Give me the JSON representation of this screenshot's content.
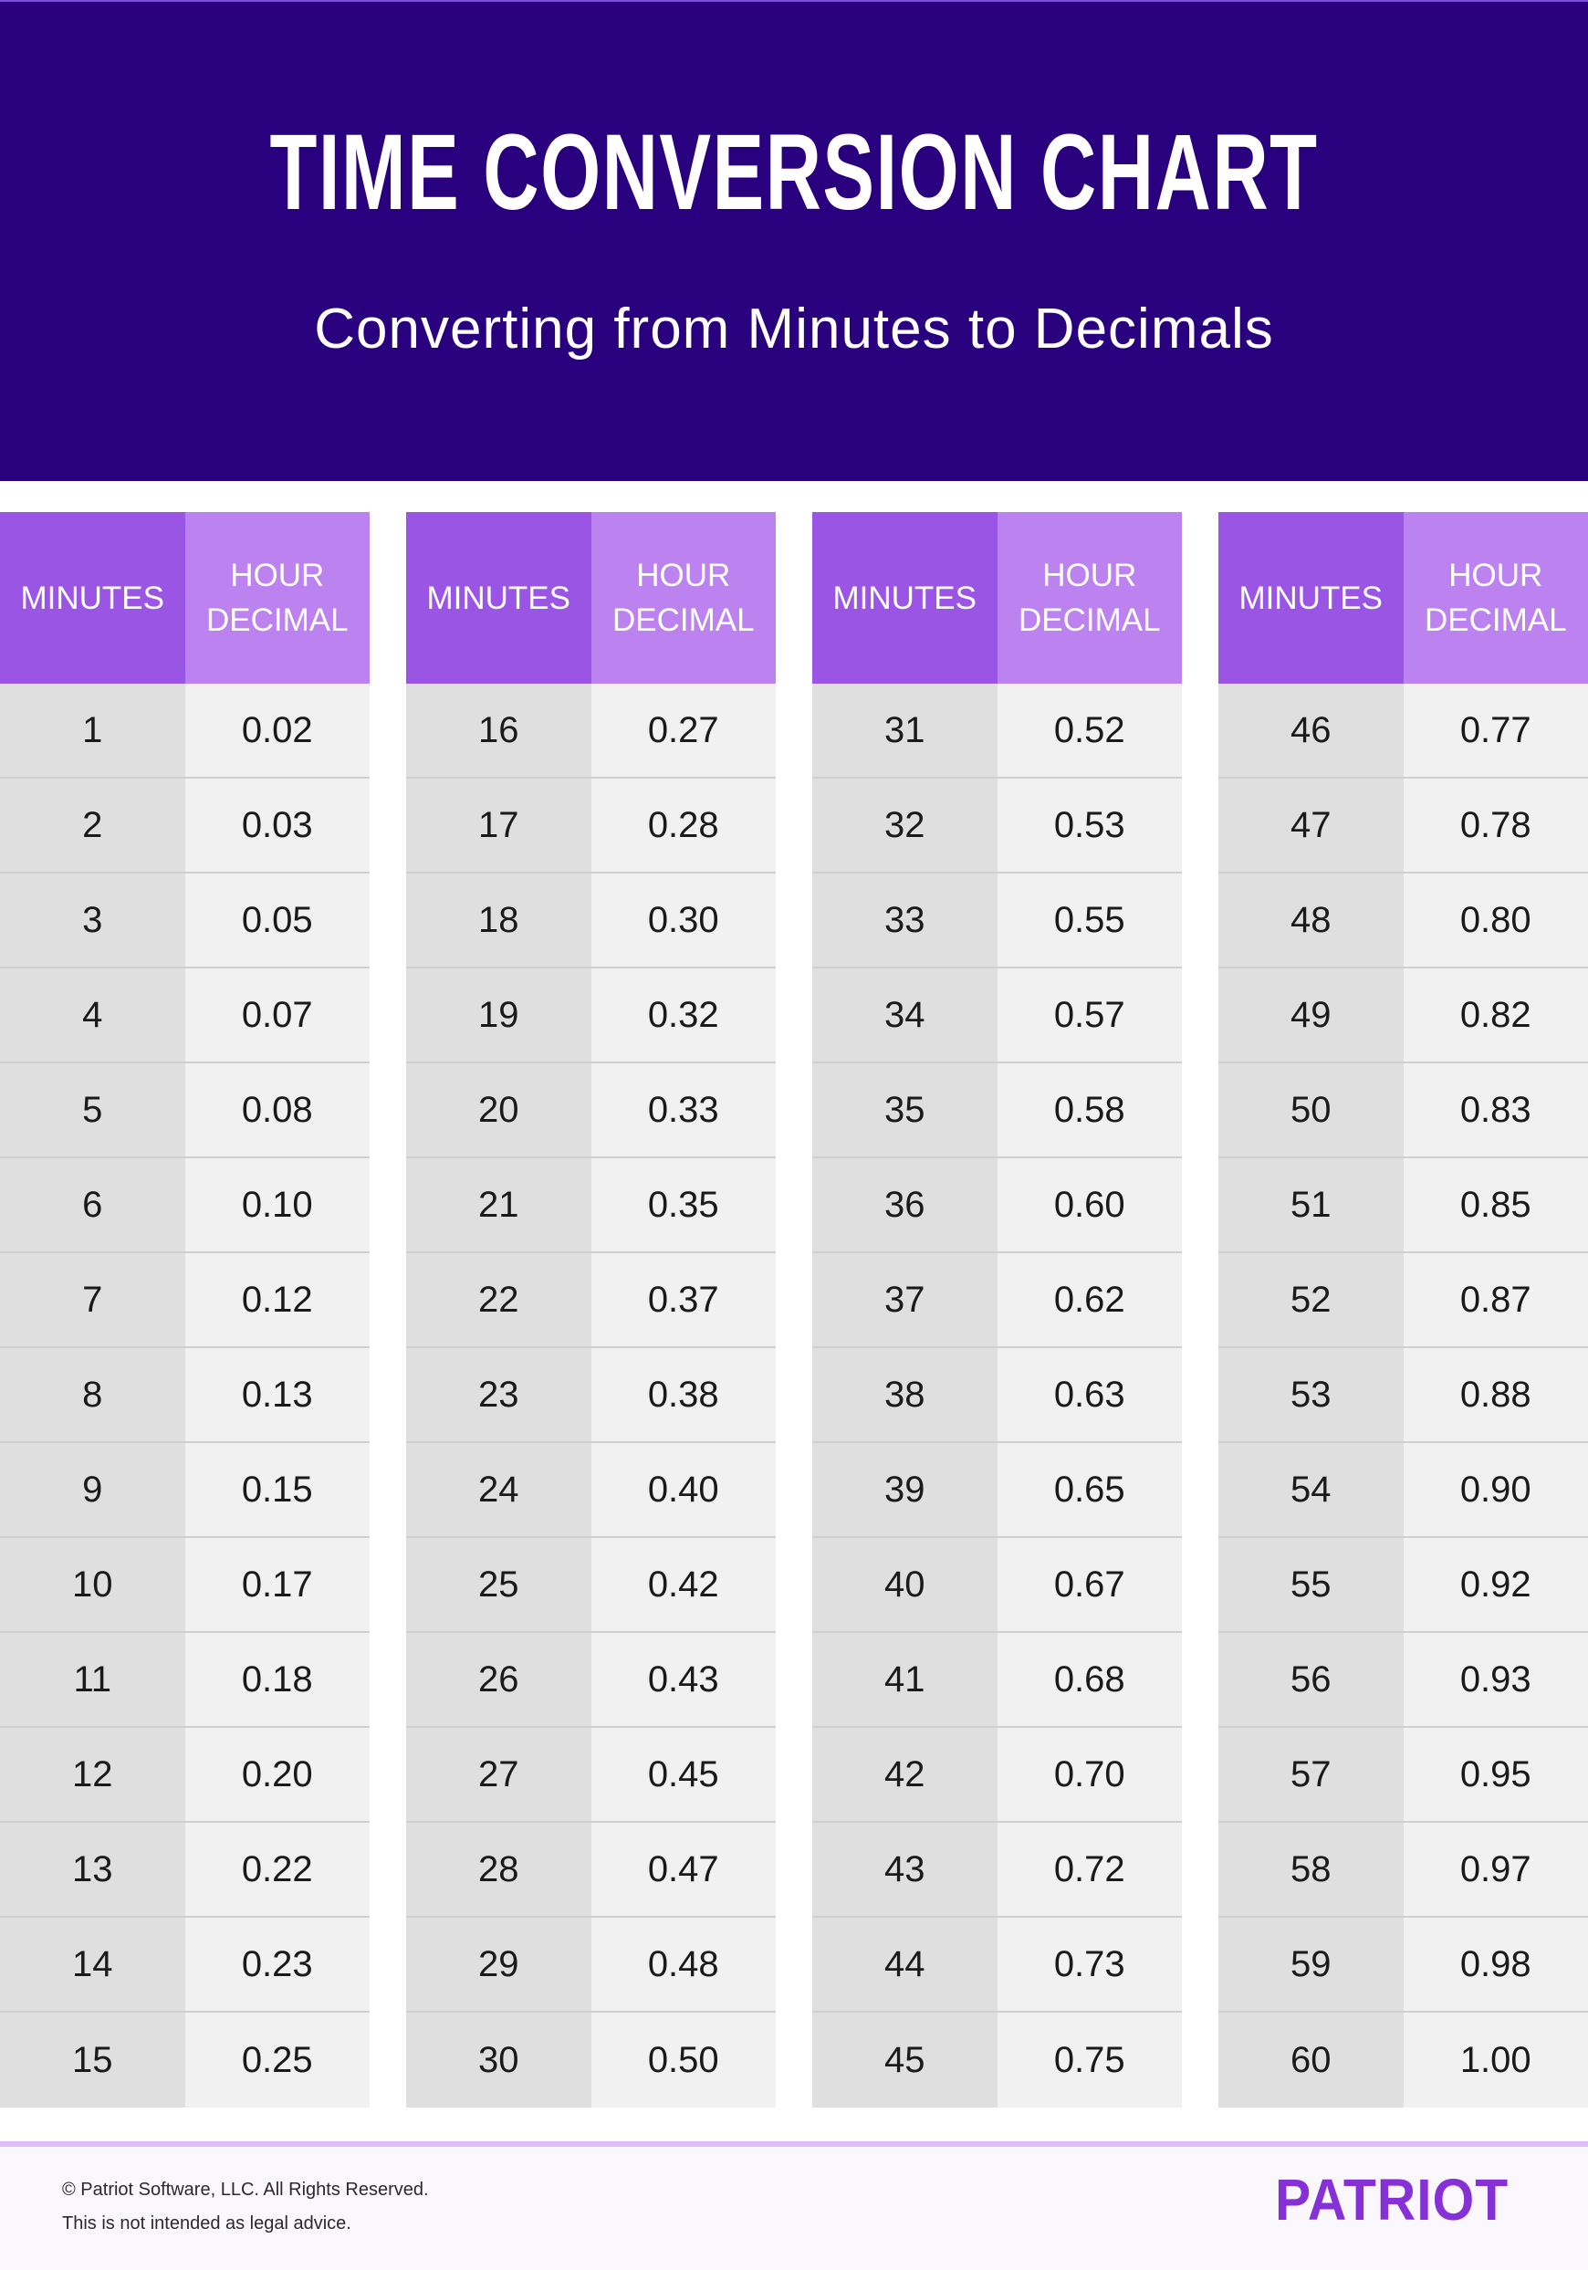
{
  "header": {
    "title": "TIME CONVERSION CHART",
    "subtitle": "Converting from Minutes to Decimals"
  },
  "columns": {
    "minutes_label": "MINUTES",
    "decimal_label_line1": "HOUR",
    "decimal_label_line2": "DECIMAL"
  },
  "colors": {
    "header_bg": "#29007d",
    "minutes_header": "#9b55e4",
    "decimal_header": "#bc82ef",
    "minutes_cell": "#dfdfdf",
    "decimal_cell": "#f1f1f1",
    "logo": "#8531d6",
    "footer_rule": "#dcbdf7"
  },
  "tables": [
    {
      "rows": [
        {
          "min": "1",
          "dec": "0.02"
        },
        {
          "min": "2",
          "dec": "0.03"
        },
        {
          "min": "3",
          "dec": "0.05"
        },
        {
          "min": "4",
          "dec": "0.07"
        },
        {
          "min": "5",
          "dec": "0.08"
        },
        {
          "min": "6",
          "dec": "0.10"
        },
        {
          "min": "7",
          "dec": "0.12"
        },
        {
          "min": "8",
          "dec": "0.13"
        },
        {
          "min": "9",
          "dec": "0.15"
        },
        {
          "min": "10",
          "dec": "0.17"
        },
        {
          "min": "11",
          "dec": "0.18"
        },
        {
          "min": "12",
          "dec": "0.20"
        },
        {
          "min": "13",
          "dec": "0.22"
        },
        {
          "min": "14",
          "dec": "0.23"
        },
        {
          "min": "15",
          "dec": "0.25"
        }
      ]
    },
    {
      "rows": [
        {
          "min": "16",
          "dec": "0.27"
        },
        {
          "min": "17",
          "dec": "0.28"
        },
        {
          "min": "18",
          "dec": "0.30"
        },
        {
          "min": "19",
          "dec": "0.32"
        },
        {
          "min": "20",
          "dec": "0.33"
        },
        {
          "min": "21",
          "dec": "0.35"
        },
        {
          "min": "22",
          "dec": "0.37"
        },
        {
          "min": "23",
          "dec": "0.38"
        },
        {
          "min": "24",
          "dec": "0.40"
        },
        {
          "min": "25",
          "dec": "0.42"
        },
        {
          "min": "26",
          "dec": "0.43"
        },
        {
          "min": "27",
          "dec": "0.45"
        },
        {
          "min": "28",
          "dec": "0.47"
        },
        {
          "min": "29",
          "dec": "0.48"
        },
        {
          "min": "30",
          "dec": "0.50"
        }
      ]
    },
    {
      "rows": [
        {
          "min": "31",
          "dec": "0.52"
        },
        {
          "min": "32",
          "dec": "0.53"
        },
        {
          "min": "33",
          "dec": "0.55"
        },
        {
          "min": "34",
          "dec": "0.57"
        },
        {
          "min": "35",
          "dec": "0.58"
        },
        {
          "min": "36",
          "dec": "0.60"
        },
        {
          "min": "37",
          "dec": "0.62"
        },
        {
          "min": "38",
          "dec": "0.63"
        },
        {
          "min": "39",
          "dec": "0.65"
        },
        {
          "min": "40",
          "dec": "0.67"
        },
        {
          "min": "41",
          "dec": "0.68"
        },
        {
          "min": "42",
          "dec": "0.70"
        },
        {
          "min": "43",
          "dec": "0.72"
        },
        {
          "min": "44",
          "dec": "0.73"
        },
        {
          "min": "45",
          "dec": "0.75"
        }
      ]
    },
    {
      "rows": [
        {
          "min": "46",
          "dec": "0.77"
        },
        {
          "min": "47",
          "dec": "0.78"
        },
        {
          "min": "48",
          "dec": "0.80"
        },
        {
          "min": "49",
          "dec": "0.82"
        },
        {
          "min": "50",
          "dec": "0.83"
        },
        {
          "min": "51",
          "dec": "0.85"
        },
        {
          "min": "52",
          "dec": "0.87"
        },
        {
          "min": "53",
          "dec": "0.88"
        },
        {
          "min": "54",
          "dec": "0.90"
        },
        {
          "min": "55",
          "dec": "0.92"
        },
        {
          "min": "56",
          "dec": "0.93"
        },
        {
          "min": "57",
          "dec": "0.95"
        },
        {
          "min": "58",
          "dec": "0.97"
        },
        {
          "min": "59",
          "dec": "0.98"
        },
        {
          "min": "60",
          "dec": "1.00"
        }
      ]
    }
  ],
  "footer": {
    "copyright": "© Patriot Software, LLC. All Rights Reserved.",
    "disclaimer": "This is not intended as legal advice.",
    "logo_text": "PATRIOT"
  },
  "chart_data": {
    "type": "table",
    "title": "TIME CONVERSION CHART",
    "subtitle": "Converting from Minutes to Decimals",
    "columns": [
      "MINUTES",
      "HOUR DECIMAL"
    ],
    "x": [
      1,
      2,
      3,
      4,
      5,
      6,
      7,
      8,
      9,
      10,
      11,
      12,
      13,
      14,
      15,
      16,
      17,
      18,
      19,
      20,
      21,
      22,
      23,
      24,
      25,
      26,
      27,
      28,
      29,
      30,
      31,
      32,
      33,
      34,
      35,
      36,
      37,
      38,
      39,
      40,
      41,
      42,
      43,
      44,
      45,
      46,
      47,
      48,
      49,
      50,
      51,
      52,
      53,
      54,
      55,
      56,
      57,
      58,
      59,
      60
    ],
    "values": [
      0.02,
      0.03,
      0.05,
      0.07,
      0.08,
      0.1,
      0.12,
      0.13,
      0.15,
      0.17,
      0.18,
      0.2,
      0.22,
      0.23,
      0.25,
      0.27,
      0.28,
      0.3,
      0.32,
      0.33,
      0.35,
      0.37,
      0.38,
      0.4,
      0.42,
      0.43,
      0.45,
      0.47,
      0.48,
      0.5,
      0.52,
      0.53,
      0.55,
      0.57,
      0.58,
      0.6,
      0.62,
      0.63,
      0.65,
      0.67,
      0.68,
      0.7,
      0.72,
      0.73,
      0.75,
      0.77,
      0.78,
      0.8,
      0.82,
      0.83,
      0.85,
      0.87,
      0.88,
      0.9,
      0.92,
      0.93,
      0.95,
      0.97,
      0.98,
      1.0
    ],
    "layout": "4 side-by-side tables of 15 rows each"
  }
}
